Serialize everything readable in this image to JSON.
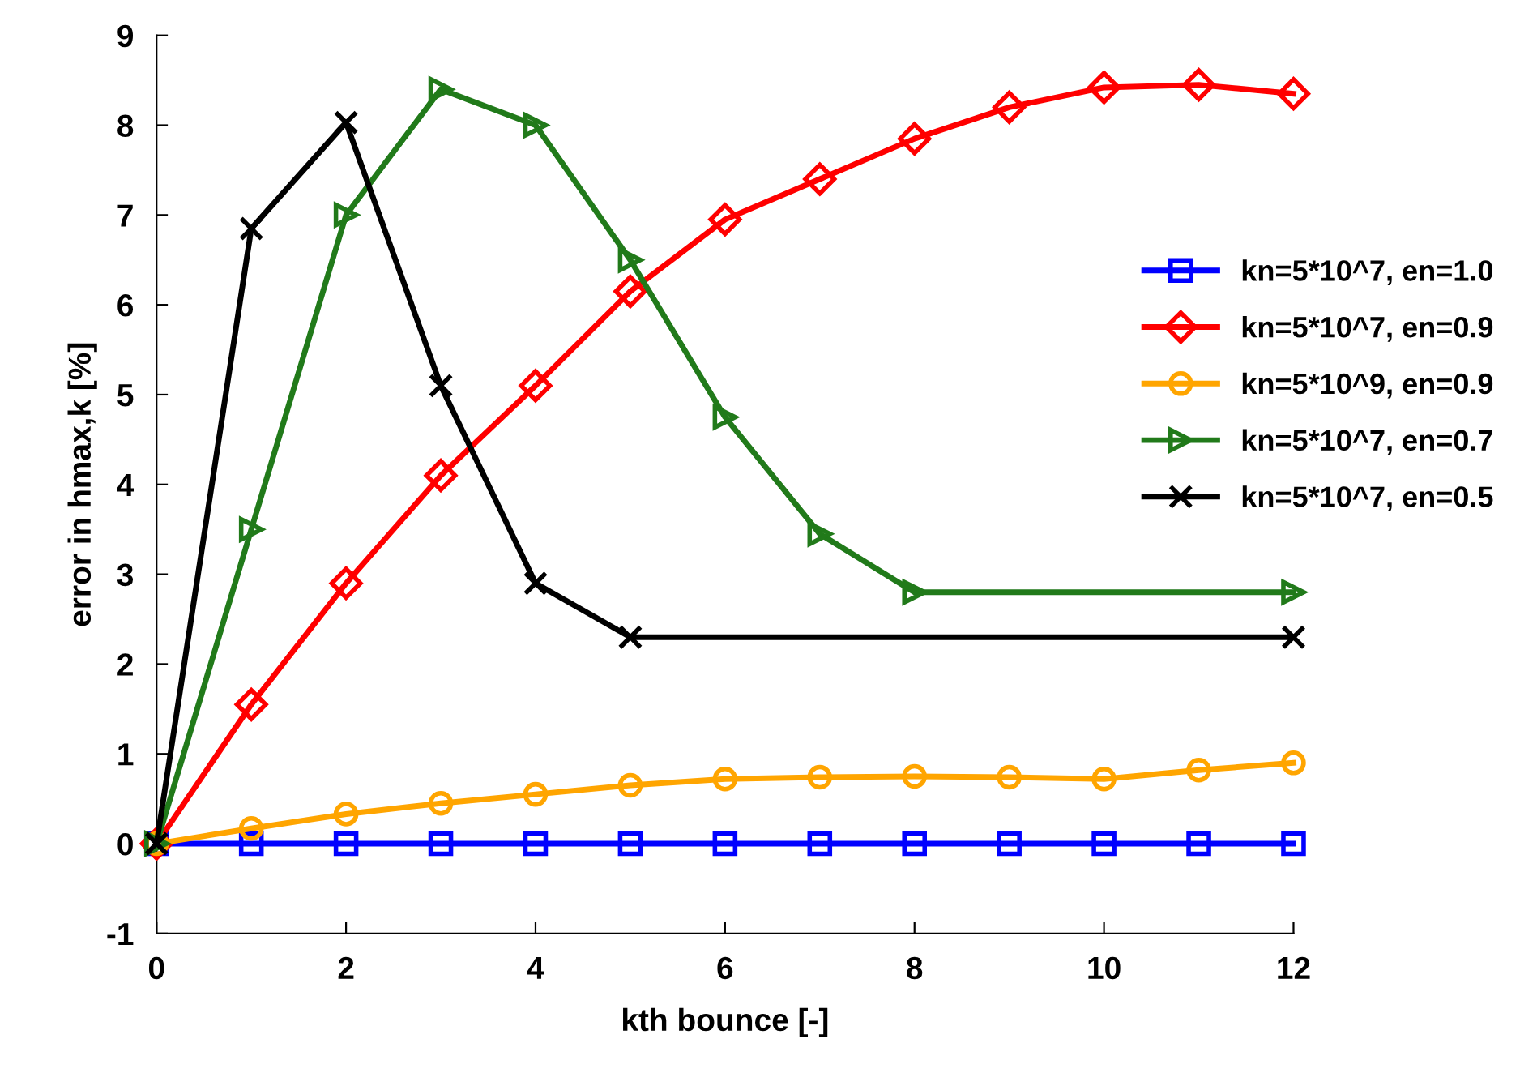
{
  "chart_data": {
    "type": "line",
    "xlabel": "kth bounce [-]",
    "ylabel": "error in hmax,k [%]",
    "xlim": [
      0,
      12
    ],
    "ylim": [
      -1,
      9
    ],
    "xticks": [
      0,
      2,
      4,
      6,
      8,
      10,
      12
    ],
    "yticks": [
      -1,
      0,
      1,
      2,
      3,
      4,
      5,
      6,
      7,
      8,
      9
    ],
    "grid": false,
    "legend": "right",
    "line_style": "solid",
    "series": [
      {
        "name": "kn=5*10^7, en=1.0",
        "color": "#0000ff",
        "marker": "square",
        "x": [
          0,
          1,
          2,
          3,
          4,
          5,
          6,
          7,
          8,
          9,
          10,
          11,
          12
        ],
        "values": [
          0,
          0,
          0,
          0,
          0,
          0,
          0,
          0,
          0,
          0,
          0,
          0,
          0
        ]
      },
      {
        "name": "kn=5*10^7, en=0.9",
        "color": "#ff0000",
        "marker": "diamond",
        "x": [
          0,
          1,
          2,
          3,
          4,
          5,
          6,
          7,
          8,
          9,
          10,
          11,
          12
        ],
        "values": [
          0,
          1.55,
          2.9,
          4.1,
          5.1,
          6.15,
          6.95,
          7.4,
          7.85,
          8.2,
          8.42,
          8.45,
          8.35
        ]
      },
      {
        "name": "kn=5*10^9, en=0.9",
        "color": "#ffa500",
        "marker": "circle",
        "x": [
          0,
          1,
          2,
          3,
          4,
          5,
          6,
          7,
          8,
          9,
          10,
          11,
          12
        ],
        "values": [
          0,
          0.17,
          0.33,
          0.45,
          0.55,
          0.65,
          0.72,
          0.74,
          0.75,
          0.74,
          0.72,
          0.82,
          0.9
        ]
      },
      {
        "name": "kn=5*10^7, en=0.7",
        "color": "#217a1a",
        "marker": "triangle",
        "x": [
          0,
          1,
          2,
          3,
          4,
          5,
          6,
          7,
          8,
          12
        ],
        "values": [
          0,
          3.5,
          7.0,
          8.4,
          8.0,
          6.5,
          4.75,
          3.45,
          2.8,
          2.8
        ]
      },
      {
        "name": "kn=5*10^7, en=0.5",
        "color": "#000000",
        "marker": "cross",
        "x": [
          0,
          1,
          2,
          3,
          4,
          5,
          12
        ],
        "values": [
          0,
          6.85,
          8.03,
          5.1,
          2.9,
          2.3,
          2.3
        ]
      }
    ]
  }
}
